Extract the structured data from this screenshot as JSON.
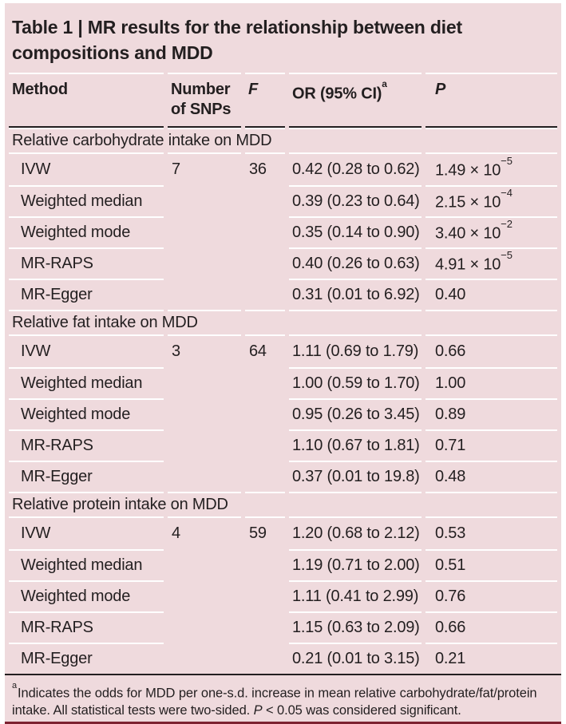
{
  "table": {
    "title": "Table 1 | MR results for the relationship between diet compositions and MDD",
    "columns": {
      "method": "Method",
      "snps": "Number of SNPs",
      "f": "F",
      "or": "OR (95% CI)",
      "or_sup": "a",
      "p": "P"
    },
    "colors": {
      "background_pink": "#efdadd",
      "rule_white": "#ffffff",
      "rule_black": "#231f20",
      "bottom_bar_maroon": "#7e2231"
    },
    "sections": [
      {
        "label": "Relative carbohydrate intake on MDD",
        "rows": [
          {
            "method": "IVW",
            "snps": "7",
            "f": "36",
            "or": "0.42 (0.28 to 0.62)",
            "p_base": "1.49 × 10",
            "p_exp": "−5"
          },
          {
            "method": "Weighted median",
            "or": "0.39 (0.23 to 0.64)",
            "p_base": "2.15 × 10",
            "p_exp": "−4"
          },
          {
            "method": "Weighted mode",
            "or": "0.35 (0.14 to 0.90)",
            "p_base": "3.40 × 10",
            "p_exp": "−2"
          },
          {
            "method": "MR-RAPS",
            "or": "0.40 (0.26 to 0.63)",
            "p_base": "4.91 × 10",
            "p_exp": "−5"
          },
          {
            "method": "MR-Egger",
            "or": "0.31 (0.01 to 6.92)",
            "p_base": "0.40"
          }
        ]
      },
      {
        "label": "Relative fat intake on MDD",
        "rows": [
          {
            "method": "IVW",
            "snps": "3",
            "f": "64",
            "or": "1.11 (0.69 to 1.79)",
            "p_base": "0.66"
          },
          {
            "method": "Weighted median",
            "or": "1.00 (0.59 to 1.70)",
            "p_base": "1.00"
          },
          {
            "method": "Weighted mode",
            "or": "0.95 (0.26 to 3.45)",
            "p_base": "0.89"
          },
          {
            "method": "MR-RAPS",
            "or": "1.10 (0.67 to 1.81)",
            "p_base": "0.71"
          },
          {
            "method": "MR-Egger",
            "or": "0.37 (0.01 to 19.8)",
            "p_base": "0.48"
          }
        ]
      },
      {
        "label": "Relative protein intake on MDD",
        "rows": [
          {
            "method": "IVW",
            "snps": "4",
            "f": "59",
            "or": "1.20 (0.68 to 2.12)",
            "p_base": "0.53"
          },
          {
            "method": "Weighted median",
            "or": "1.19 (0.71 to 2.00)",
            "p_base": "0.51"
          },
          {
            "method": "Weighted mode",
            "or": "1.11 (0.41 to 2.99)",
            "p_base": "0.76"
          },
          {
            "method": "MR-RAPS",
            "or": "1.15 (0.63 to 2.09)",
            "p_base": "0.66"
          },
          {
            "method": "MR-Egger",
            "or": "0.21 (0.01 to 3.15)",
            "p_base": "0.21"
          }
        ]
      }
    ],
    "footnote": {
      "sup": "a",
      "text1": "Indicates the odds for MDD per one-s.d. increase in mean relative carbohydrate/fat/protein intake. All statistical tests were two-sided. ",
      "p_italic": "P",
      "text2": " < 0.05 was considered significant."
    }
  }
}
